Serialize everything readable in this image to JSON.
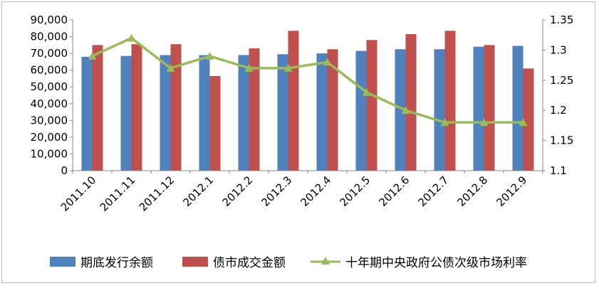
{
  "chart_data": {
    "type": "bar",
    "categories": [
      "2011.10",
      "2011.11",
      "2011.12",
      "2012.1",
      "2012.2",
      "2012.3",
      "2012.4",
      "2012.5",
      "2012.6",
      "2012.7",
      "2012.8",
      "2012.9"
    ],
    "series": [
      {
        "name": "期底发行余额",
        "type": "bar",
        "axis": "left",
        "color": "#4f81bd",
        "values": [
          68000,
          68500,
          69000,
          69000,
          69000,
          69500,
          70000,
          71500,
          72500,
          72500,
          74000,
          74500
        ]
      },
      {
        "name": "债市成交金额",
        "type": "bar",
        "axis": "left",
        "color": "#c0504d",
        "values": [
          75000,
          75500,
          75500,
          56500,
          73000,
          83500,
          72500,
          78000,
          81500,
          83500,
          75000,
          61000
        ]
      },
      {
        "name": "十年期中央政府公债次级市场利率",
        "type": "line",
        "axis": "right",
        "color": "#9bbb59",
        "values": [
          1.29,
          1.32,
          1.27,
          1.29,
          1.27,
          1.27,
          1.28,
          1.23,
          1.2,
          1.18,
          1.18,
          1.18
        ]
      }
    ],
    "y_left": {
      "ylim": [
        0,
        90000
      ],
      "ticks": [
        "0",
        "10,000",
        "20,000",
        "30,000",
        "40,000",
        "50,000",
        "60,000",
        "70,000",
        "80,000",
        "90,000"
      ]
    },
    "y_right": {
      "ylim": [
        1.1,
        1.35
      ],
      "ticks": [
        "1.1",
        "1.15",
        "1.2",
        "1.25",
        "1.3",
        "1.35"
      ]
    },
    "grid": false,
    "legend_position": "bottom"
  }
}
